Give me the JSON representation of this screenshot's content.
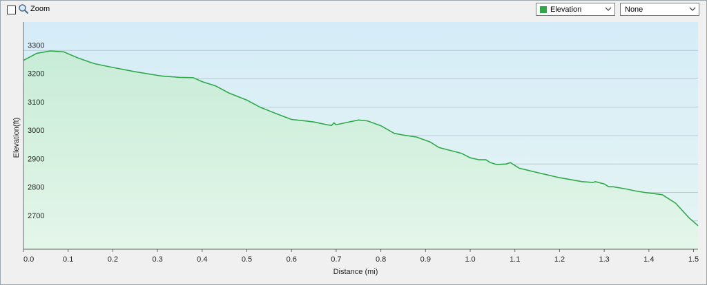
{
  "toolbar": {
    "zoom_label": "Zoom",
    "series_select": {
      "value": "Elevation",
      "swatch_color": "#2ea84a"
    },
    "overlay_select": {
      "value": "None"
    }
  },
  "chart_data": {
    "type": "area",
    "xlabel": "Distance  (mi)",
    "ylabel": "Elevation(ft)",
    "xlim": [
      0,
      1.51
    ],
    "ylim": [
      2600,
      3400
    ],
    "x_ticks": [
      "0.0",
      "0.1",
      "0.2",
      "0.3",
      "0.4",
      "0.5",
      "0.6",
      "0.7",
      "0.8",
      "0.9",
      "1.0",
      "1.1",
      "1.2",
      "1.3",
      "1.4",
      "1.5"
    ],
    "y_ticks": [
      "2700",
      "2800",
      "2900",
      "3000",
      "3100",
      "3200",
      "3300"
    ],
    "grid": "horizontal",
    "line_color": "#2ea84a",
    "series": [
      {
        "x": [
          0.0,
          0.03,
          0.06,
          0.09,
          0.12,
          0.15,
          0.16,
          0.2,
          0.25,
          0.3,
          0.31,
          0.35,
          0.38,
          0.4,
          0.43,
          0.46,
          0.5,
          0.53,
          0.57,
          0.6,
          0.63,
          0.65,
          0.68,
          0.69,
          0.695,
          0.7,
          0.72,
          0.75,
          0.77,
          0.8,
          0.83,
          0.85,
          0.88,
          0.91,
          0.93,
          0.95,
          0.98,
          1.0,
          1.02,
          1.035,
          1.04,
          1.045,
          1.06,
          1.08,
          1.09,
          1.1,
          1.11,
          1.15,
          1.2,
          1.25,
          1.275,
          1.28,
          1.3,
          1.31,
          1.32,
          1.35,
          1.37,
          1.39,
          1.4,
          1.43,
          1.46,
          1.49,
          1.51
        ],
        "y": [
          3265,
          3290,
          3298,
          3295,
          3275,
          3258,
          3253,
          3240,
          3225,
          3212,
          3210,
          3205,
          3204,
          3190,
          3175,
          3150,
          3125,
          3100,
          3075,
          3057,
          3052,
          3048,
          3038,
          3036,
          3045,
          3038,
          3045,
          3055,
          3052,
          3035,
          3008,
          3002,
          2995,
          2978,
          2958,
          2950,
          2938,
          2922,
          2915,
          2915,
          2910,
          2905,
          2898,
          2900,
          2905,
          2895,
          2885,
          2870,
          2852,
          2838,
          2835,
          2838,
          2830,
          2820,
          2820,
          2812,
          2805,
          2800,
          2798,
          2792,
          2762,
          2710,
          2683
        ]
      }
    ]
  }
}
